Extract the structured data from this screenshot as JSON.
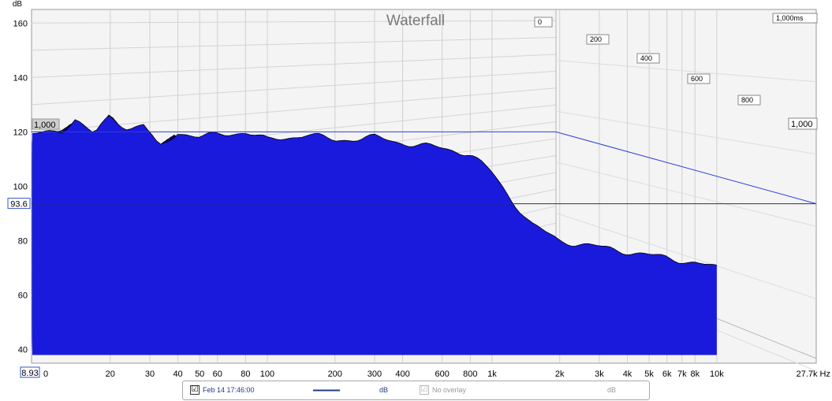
{
  "chart_data": {
    "type": "area",
    "title": "Waterfall",
    "ylabel": "dB",
    "xlabel_unit": "Hz",
    "y_ticks": [
      "160",
      "140",
      "120",
      "100",
      "80",
      "60",
      "40"
    ],
    "y_range": [
      35,
      165
    ],
    "cursor_y": "93.6",
    "x_ticks": [
      "0",
      "20",
      "30",
      "40",
      "50",
      "60",
      "80",
      "100",
      "200",
      "300",
      "400",
      "600",
      "800",
      "1k",
      "2k",
      "3k",
      "4k",
      "5k",
      "6k",
      "7k",
      "8k",
      "10k"
    ],
    "x_end_label": "27.7k Hz",
    "x_cursor": "8.93",
    "x_range_hz": [
      8.93,
      27700
    ],
    "z_axis_labels": [
      "0",
      "200",
      "400",
      "600",
      "800",
      "1,000ms"
    ],
    "z_right_label": "1,000",
    "z_left_label": "1,000",
    "z_range_ms": [
      0,
      1000
    ],
    "slices": 48,
    "front_response_db": [
      {
        "hz": 9,
        "db": 119
      },
      {
        "hz": 12,
        "db": 120
      },
      {
        "hz": 14,
        "db": 125
      },
      {
        "hz": 17,
        "db": 119
      },
      {
        "hz": 20,
        "db": 126
      },
      {
        "hz": 24,
        "db": 121
      },
      {
        "hz": 28,
        "db": 123
      },
      {
        "hz": 33,
        "db": 114
      },
      {
        "hz": 40,
        "db": 120
      },
      {
        "hz": 50,
        "db": 118
      },
      {
        "hz": 60,
        "db": 119
      },
      {
        "hz": 80,
        "db": 120
      },
      {
        "hz": 100,
        "db": 117
      },
      {
        "hz": 150,
        "db": 119
      },
      {
        "hz": 200,
        "db": 117
      },
      {
        "hz": 300,
        "db": 118
      },
      {
        "hz": 400,
        "db": 116
      },
      {
        "hz": 600,
        "db": 114
      },
      {
        "hz": 800,
        "db": 112
      },
      {
        "hz": 1000,
        "db": 105
      },
      {
        "hz": 1200,
        "db": 96
      },
      {
        "hz": 1500,
        "db": 86
      },
      {
        "hz": 2000,
        "db": 80
      },
      {
        "hz": 4000,
        "db": 76
      },
      {
        "hz": 8000,
        "db": 72
      },
      {
        "hz": 10000,
        "db": 70
      }
    ],
    "series_color": "#1a1adc",
    "line_color": "#000000",
    "grid": true
  },
  "legend": {
    "measurement_label": "Feb 14 17:46:00",
    "measurement_checked": "☑",
    "unit_1": "dB",
    "overlay_label": "No overlay",
    "overlay_checked": "☑",
    "unit_2": "dB"
  }
}
